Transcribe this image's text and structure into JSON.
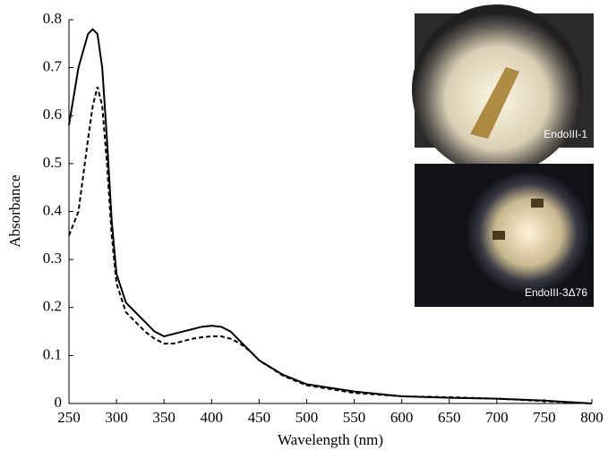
{
  "chart_data": {
    "type": "line",
    "x_label": "Wavelength (nm)",
    "y_label": "Absorbance",
    "x": [
      250,
      260,
      270,
      275,
      280,
      285,
      290,
      295,
      300,
      310,
      320,
      330,
      340,
      350,
      360,
      370,
      380,
      390,
      400,
      410,
      420,
      430,
      440,
      450,
      475,
      500,
      550,
      600,
      650,
      700,
      750,
      800
    ],
    "series": [
      {
        "color": "#000000",
        "dash": "solid",
        "values": [
          0.58,
          0.7,
          0.77,
          0.78,
          0.77,
          0.7,
          0.55,
          0.38,
          0.27,
          0.21,
          0.19,
          0.17,
          0.15,
          0.14,
          0.145,
          0.15,
          0.155,
          0.16,
          0.162,
          0.16,
          0.15,
          0.13,
          0.11,
          0.09,
          0.06,
          0.04,
          0.025,
          0.015,
          0.012,
          0.01,
          0.006,
          0.0
        ]
      },
      {
        "color": "#000000",
        "dash": "dashed",
        "values": [
          0.35,
          0.4,
          0.55,
          0.62,
          0.66,
          0.62,
          0.5,
          0.35,
          0.25,
          0.19,
          0.17,
          0.15,
          0.135,
          0.125,
          0.125,
          0.13,
          0.135,
          0.138,
          0.14,
          0.14,
          0.135,
          0.125,
          0.11,
          0.09,
          0.058,
          0.038,
          0.022,
          0.015,
          0.013,
          0.01,
          0.005,
          0.0
        ]
      }
    ],
    "xlim": [
      250,
      800
    ],
    "xticks": [
      250,
      300,
      350,
      400,
      450,
      500,
      550,
      600,
      650,
      700,
      750,
      800
    ],
    "ylim": [
      0,
      0.8
    ],
    "yticks": [
      0,
      0.1,
      0.2,
      0.3,
      0.4,
      0.5,
      0.6,
      0.7,
      0.8
    ],
    "annotations": [
      "EndoIII-1",
      "EndoIII-3Δ76"
    ]
  }
}
